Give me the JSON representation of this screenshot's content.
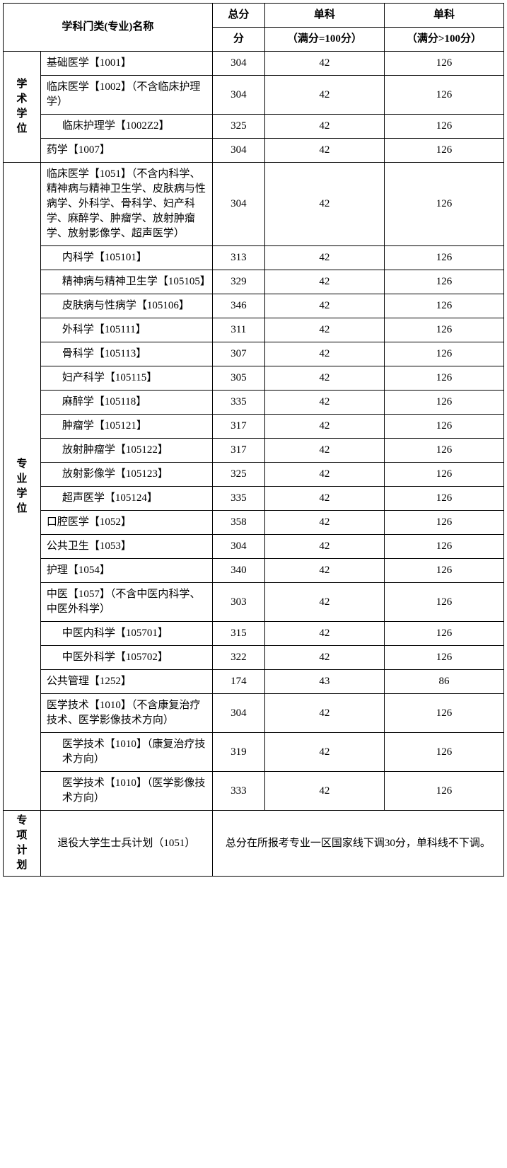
{
  "header": {
    "subject_name": "学科门类(专业)名称",
    "total_score": "总分",
    "single_eq_100": "单科",
    "single_eq_100_sub": "（满分=100分）",
    "single_gt_100": "单科",
    "single_gt_100_sub": "（满分>100分）"
  },
  "categories": {
    "academic": "学术学位",
    "professional": "专业学位",
    "special": "专项计划"
  },
  "academic_rows": [
    {
      "name": "基础医学【1001】",
      "indented": false,
      "total": "304",
      "s1": "42",
      "s2": "126"
    },
    {
      "name": "临床医学【1002】（不含临床护理学）",
      "indented": false,
      "total": "304",
      "s1": "42",
      "s2": "126"
    },
    {
      "name": "临床护理学【1002Z2】",
      "indented": true,
      "total": "325",
      "s1": "42",
      "s2": "126"
    },
    {
      "name": "药学【1007】",
      "indented": false,
      "total": "304",
      "s1": "42",
      "s2": "126"
    }
  ],
  "professional_rows": [
    {
      "name": "临床医学【1051】（不含内科学、精神病与精神卫生学、皮肤病与性病学、外科学、骨科学、妇产科学、麻醉学、肿瘤学、放射肿瘤学、放射影像学、超声医学）",
      "indented": false,
      "total": "304",
      "s1": "42",
      "s2": "126"
    },
    {
      "name": "内科学【105101】",
      "indented": true,
      "total": "313",
      "s1": "42",
      "s2": "126"
    },
    {
      "name": "精神病与精神卫生学【105105】",
      "indented": true,
      "total": "329",
      "s1": "42",
      "s2": "126"
    },
    {
      "name": "皮肤病与性病学【105106】",
      "indented": true,
      "total": "346",
      "s1": "42",
      "s2": "126"
    },
    {
      "name": "外科学【105111】",
      "indented": true,
      "total": "311",
      "s1": "42",
      "s2": "126"
    },
    {
      "name": "骨科学【105113】",
      "indented": true,
      "total": "307",
      "s1": "42",
      "s2": "126"
    },
    {
      "name": "妇产科学【105115】",
      "indented": true,
      "total": "305",
      "s1": "42",
      "s2": "126"
    },
    {
      "name": "麻醉学【105118】",
      "indented": true,
      "total": "335",
      "s1": "42",
      "s2": "126"
    },
    {
      "name": "肿瘤学【105121】",
      "indented": true,
      "total": "317",
      "s1": "42",
      "s2": "126"
    },
    {
      "name": "放射肿瘤学【105122】",
      "indented": true,
      "total": "317",
      "s1": "42",
      "s2": "126"
    },
    {
      "name": "放射影像学【105123】",
      "indented": true,
      "total": "325",
      "s1": "42",
      "s2": "126"
    },
    {
      "name": "超声医学【105124】",
      "indented": true,
      "total": "335",
      "s1": "42",
      "s2": "126"
    },
    {
      "name": "口腔医学【1052】",
      "indented": false,
      "total": "358",
      "s1": "42",
      "s2": "126"
    },
    {
      "name": "公共卫生【1053】",
      "indented": false,
      "total": "304",
      "s1": "42",
      "s2": "126"
    },
    {
      "name": "护理【1054】",
      "indented": false,
      "total": "340",
      "s1": "42",
      "s2": "126"
    },
    {
      "name": "中医【1057】（不含中医内科学、中医外科学）",
      "indented": false,
      "total": "303",
      "s1": "42",
      "s2": "126"
    },
    {
      "name": "中医内科学【105701】",
      "indented": true,
      "total": "315",
      "s1": "42",
      "s2": "126"
    },
    {
      "name": "中医外科学【105702】",
      "indented": true,
      "total": "322",
      "s1": "42",
      "s2": "126"
    },
    {
      "name": "公共管理【1252】",
      "indented": false,
      "total": "174",
      "s1": "43",
      "s2": "86"
    },
    {
      "name": "医学技术【1010】（不含康复治疗技术、医学影像技术方向）",
      "indented": false,
      "total": "304",
      "s1": "42",
      "s2": "126"
    },
    {
      "name": "医学技术【1010】（康复治疗技术方向）",
      "indented": true,
      "total": "319",
      "s1": "42",
      "s2": "126"
    },
    {
      "name": "医学技术【1010】（医学影像技术方向）",
      "indented": true,
      "total": "333",
      "s1": "42",
      "s2": "126"
    }
  ],
  "special": {
    "name": "退役大学生士兵计划（1051）",
    "note": "总分在所报考专业一区国家线下调30分，单科线不下调。"
  },
  "style": {
    "border_color": "#000000",
    "background": "#ffffff",
    "font_size": 15,
    "header_bold": true,
    "col_widths": {
      "category": 50,
      "name": 230,
      "total": 70,
      "sub1": 160,
      "sub2": 160
    }
  }
}
